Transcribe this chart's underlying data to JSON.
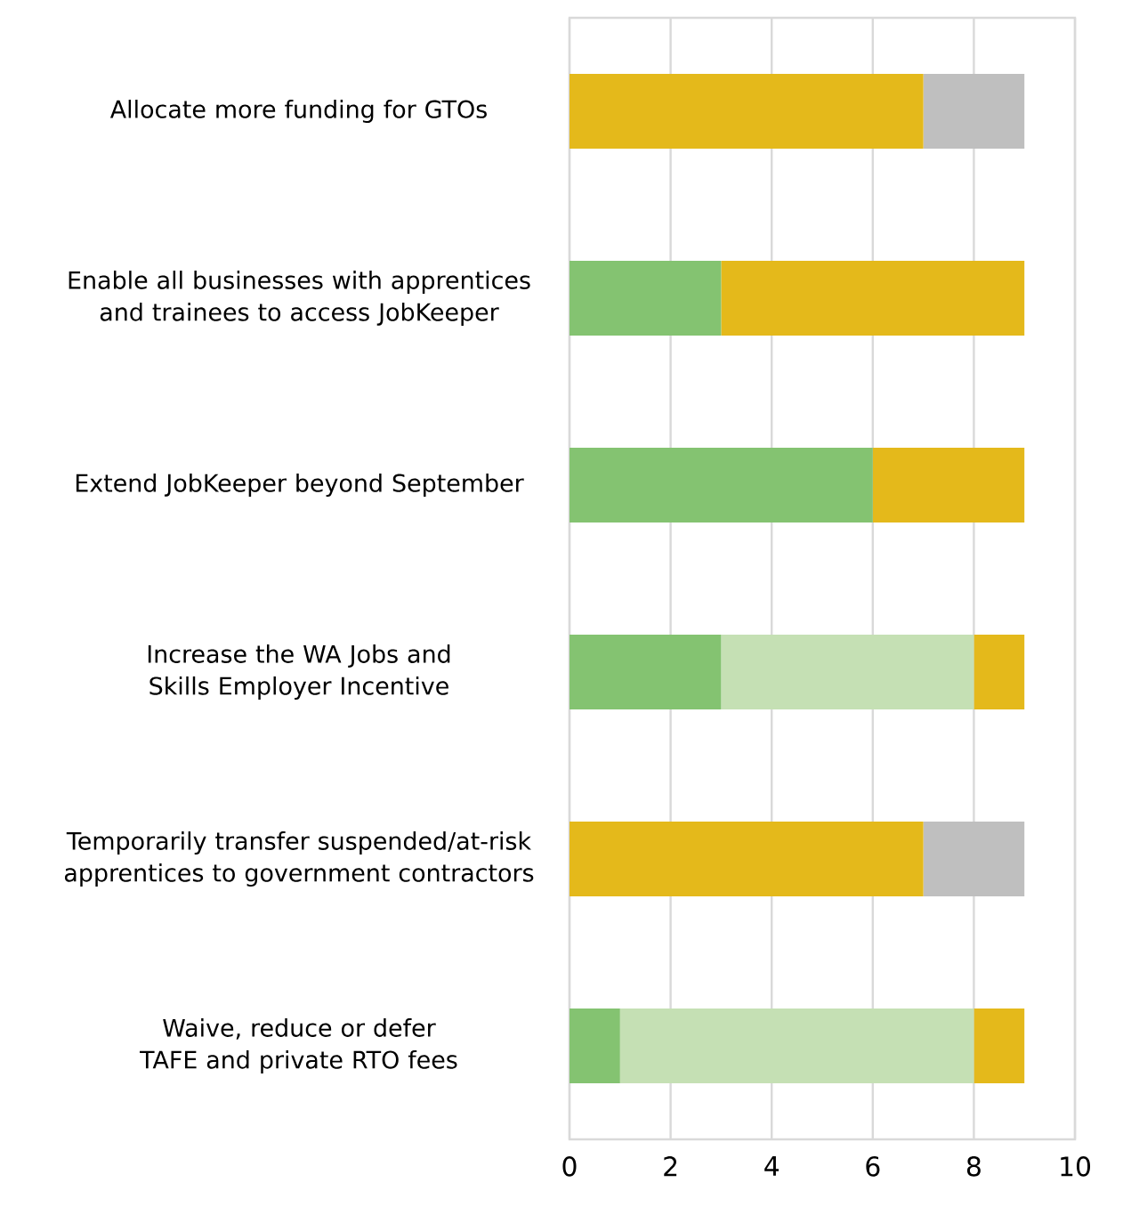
{
  "chart_data": {
    "type": "bar",
    "orientation": "horizontal",
    "stacked": true,
    "grid": "x",
    "categories": [
      "Allocate more funding for GTOs",
      "Enable all businesses with apprentices and trainees to access JobKeeper",
      "Extend JobKeeper beyond September",
      "Increase the WA Jobs and Skills Employer Incentive",
      "Temporarily transfer suspended/at-risk apprentices to government contractors",
      "Waive, reduce or defer TAFE and private RTO fees"
    ],
    "series": [
      {
        "color": "#84c371",
        "values": [
          0,
          3,
          6,
          3,
          0,
          1
        ]
      },
      {
        "color": "#c5e0b4",
        "values": [
          0,
          0,
          0,
          5,
          0,
          7
        ]
      },
      {
        "color": "#e4b91b",
        "values": [
          7,
          6,
          3,
          1,
          7,
          1
        ]
      },
      {
        "color": "#bfbfbf",
        "values": [
          2,
          0,
          0,
          0,
          2,
          0
        ]
      }
    ],
    "xlim": [
      0,
      10
    ],
    "xticks": [
      0,
      2,
      4,
      6,
      8,
      10
    ]
  }
}
